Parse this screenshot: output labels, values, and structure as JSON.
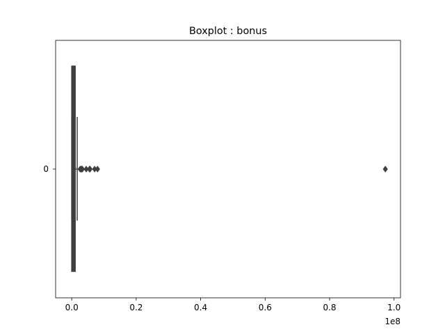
{
  "chart_data": {
    "type": "box",
    "orientation": "horizontal",
    "title": "Boxplot : bonus",
    "xlabel": "",
    "ylabel": "",
    "x_offset_label": "1e8",
    "xlim": [
      -5000000,
      102000000
    ],
    "xticks": [
      0,
      20000000,
      40000000,
      60000000,
      80000000,
      100000000
    ],
    "xtick_labels": [
      "0.0",
      "0.2",
      "0.4",
      "0.6",
      "0.8",
      "1.0"
    ],
    "categories": [
      "0"
    ],
    "series": [
      {
        "category": "0",
        "whisker_low": 0,
        "q1": 0,
        "median": 700000,
        "q3": 1000000,
        "whisker_high": 1700000,
        "outliers": [
          2600000,
          2800000,
          3000000,
          3100000,
          3300000,
          4500000,
          5500000,
          5700000,
          7100000,
          8000000,
          97300000
        ]
      }
    ],
    "colors": {
      "box_edge": "#3f3f3f",
      "box_fill": "#3f3f3f",
      "outlier": "#3f3f3f"
    },
    "grid": false
  }
}
